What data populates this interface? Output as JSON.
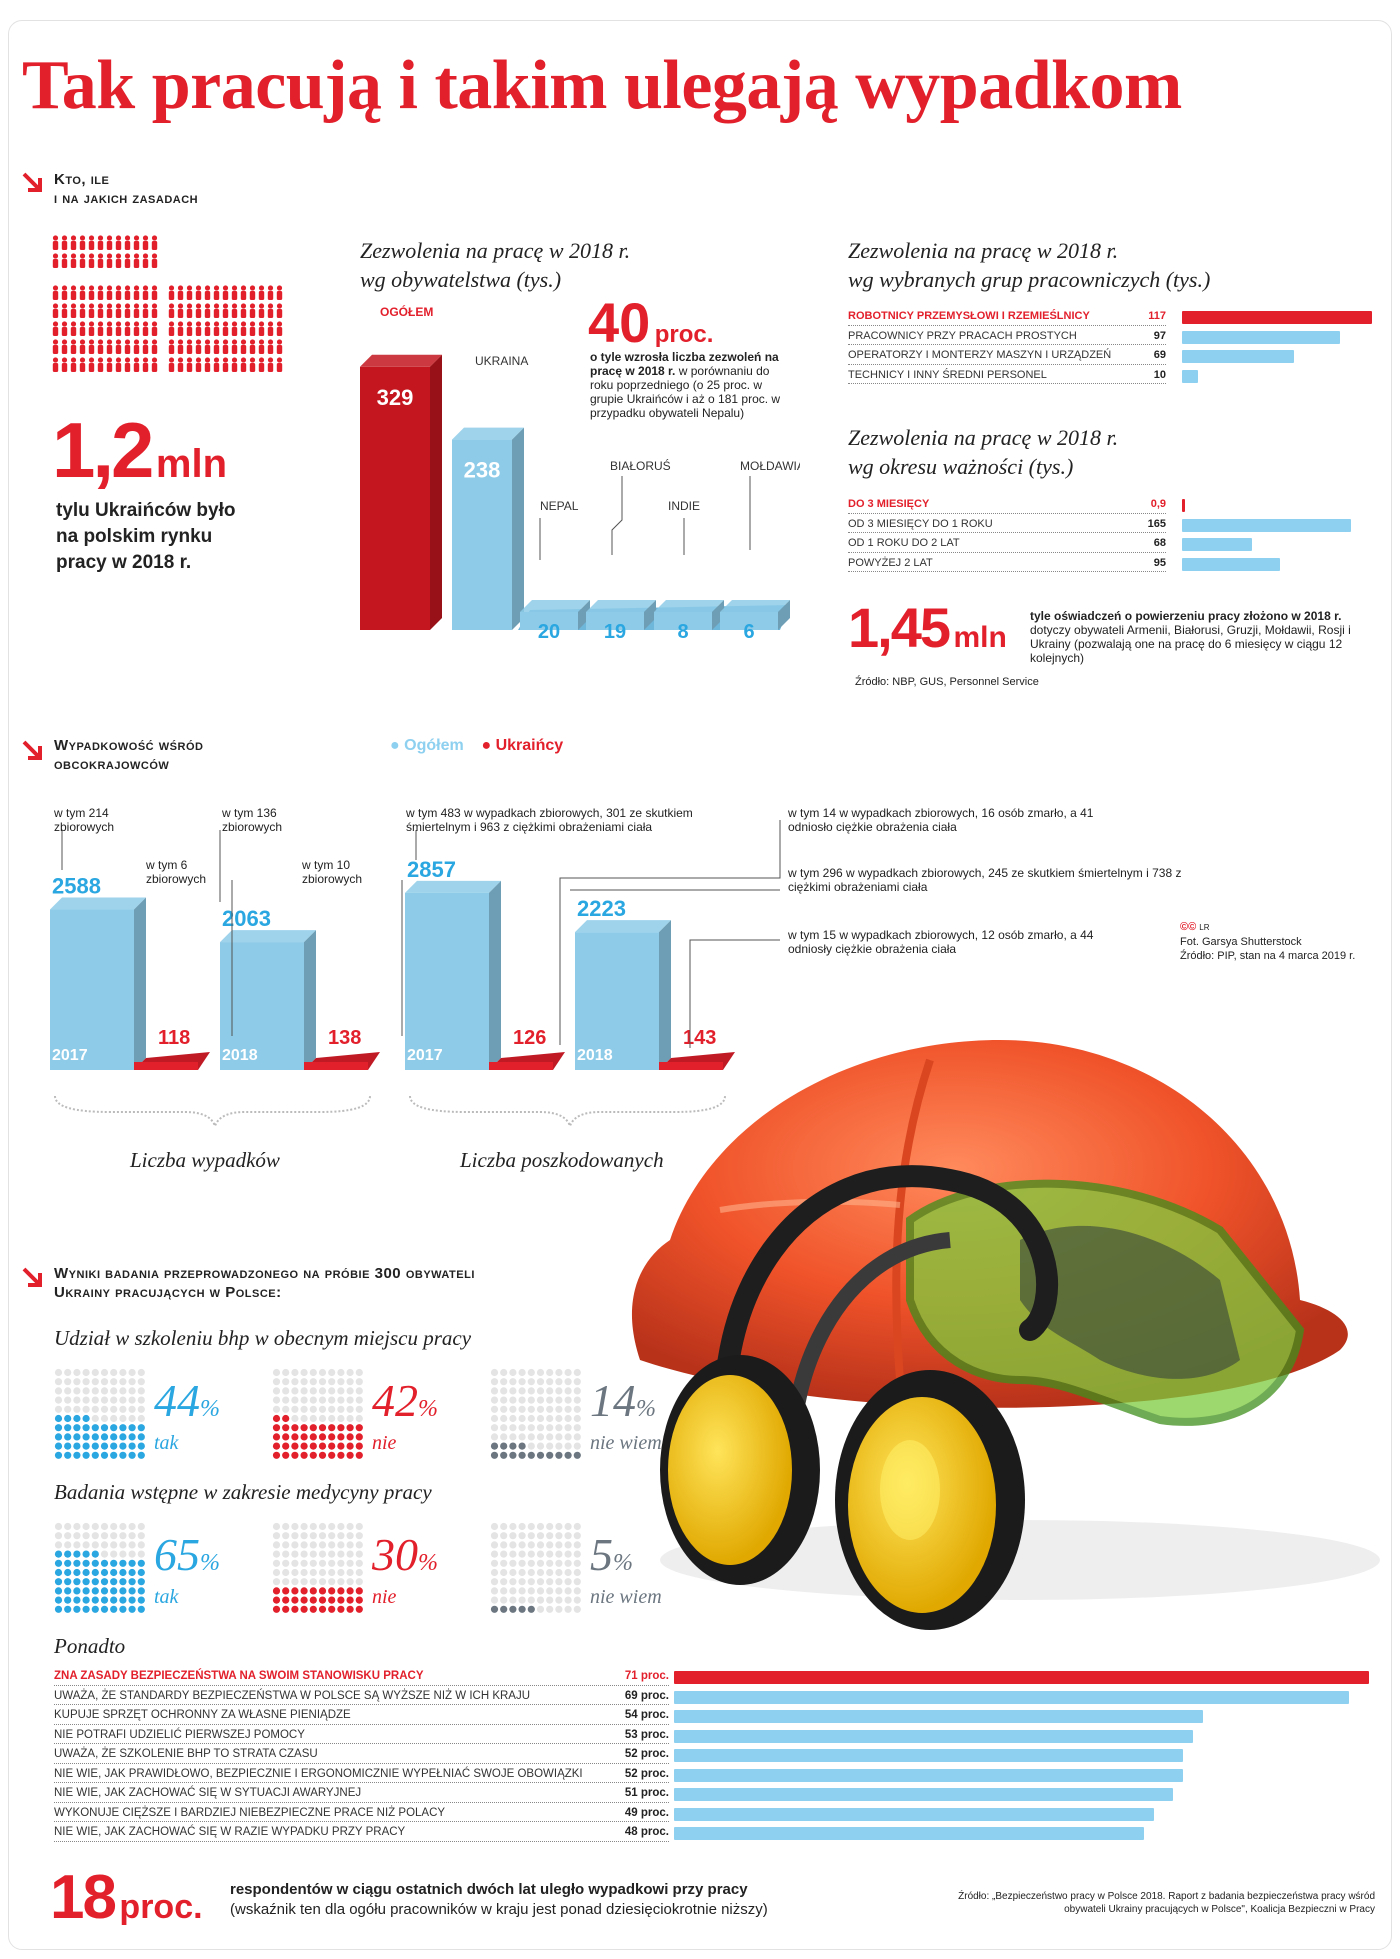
{
  "title": "Tak pracują i takim ulegają wypadkom",
  "section1": {
    "heading_line1": "Kto, ile",
    "heading_line2": "i na jakich zasadach",
    "big_number": "1,2",
    "big_unit": "mln",
    "big_caption": "tylu Ukraińców było na polskim rynku pracy w 2018 r."
  },
  "citizenship_chart": {
    "title_line1": "Zezwolenia na pracę w 2018 r.",
    "title_line2": "wg obywatelstwa (tys.)",
    "growth_number": "40",
    "growth_unit": "proc.",
    "growth_bold": "o tyle wzrosła liczba zezwoleń na pracę w 2018 r.",
    "growth_rest": " w porównaniu do roku poprzedniego (o 25 proc. w grupie Ukraińców i aż o 181 proc. w przypadku obywateli Nepalu)"
  },
  "groups_chart": {
    "title_line1": "Zezwolenia na pracę w 2018 r.",
    "title_line2": "wg wybranych grup pracowniczych (tys.)"
  },
  "validity_chart": {
    "title_line1": "Zezwolenia na pracę w 2018 r.",
    "title_line2": "wg okresu ważności (tys.)"
  },
  "declarations": {
    "number": "1,45",
    "unit": "mln",
    "bold": "tyle oświadczeń o powierzeniu pracy złożono w 2018 r.",
    "rest": "dotyczy obywateli Armenii, Białorusi, Gruzji, Mołdawii, Rosji i Ukrainy (pozwalają one na pracę do 6 miesięcy w ciągu 12 kolejnych)",
    "source": "Źródło: NBP, GUS, Personnel Service"
  },
  "section2": {
    "heading_line1": "Wypadkowość wśród",
    "heading_line2": "obcokrajowców",
    "legend_all": "Ogółem",
    "legend_ua": "Ukraińcy",
    "group1_label": "Liczba wypadków",
    "group2_label": "Liczba poszkodowanych",
    "ann": [
      "w tym 214 zbiorowych",
      "w tym 6 zbiorowych",
      "w tym 136 zbiorowych",
      "w tym 10 zbiorowych",
      "w tym 483 w wypadkach zbiorowych, 301 ze skutkiem śmiertelnym i 963 z ciężkimi obrażeniami ciała",
      "w tym 14 w wypadkach zbiorowych, 16 osób zmarło, a 41 odniosło ciężkie obrażenia ciała",
      "w tym 296 w wypadkach zbiorowych, 245 ze skutkiem śmiertelnym i 738 z ciężkimi obrażeniami ciała",
      "w tym 15 w wypadkach zbiorowych, 12 osób zmarło, a 44 odniosły ciężkie obrażenia ciała"
    ],
    "credit_lr": "LR",
    "credit_photo": "Fot. Garsya Shutterstock",
    "credit_source": "Źródło: PIP, stan na 4 marca 2019 r."
  },
  "section3": {
    "heading_line1": "Wyniki badania przeprowadzonego na próbie 300 obywateli",
    "heading_line2": "Ukrainy pracujących w Polsce:",
    "q1": "Udział w szkoleniu bhp w obecnym miejscu pracy",
    "q2": "Badania wstępne w zakresie medycyny pracy",
    "ponadto": "Ponadto",
    "footer_number": "18",
    "footer_unit": "proc.",
    "footer_bold": "respondentów w ciągu ostatnich dwóch lat uległo wypadkowi przy pracy",
    "footer_rest": "(wskaźnik ten dla ogółu pracowników w kraju jest ponad dziesięciokrotnie niższy)",
    "footer_source": "Źródło: „Bezpieczeństwo pracy w Polsce 2018. Raport z badania bezpieczeństwa pracy wśród obywateli Ukrainy pracujących w Polsce\", Koalicja Bezpieczni w Pracy"
  },
  "colors": {
    "red": "#e2202c",
    "blue": "#8dd0ef",
    "blue_text": "#2aa6e0",
    "gray": "#9aa3ab"
  },
  "chart_data": [
    {
      "type": "bar",
      "title": "Zezwolenia na pracę w 2018 r. wg obywatelstwa (tys.)",
      "categories": [
        "OGÓŁEM",
        "UKRAINA",
        "NEPAL",
        "BIAŁORUŚ",
        "INDIE",
        "MOŁDAWIA"
      ],
      "values": [
        329,
        238,
        20,
        19,
        8,
        6
      ]
    },
    {
      "type": "bar",
      "title": "Zezwolenia na pracę w 2018 r. wg wybranych grup pracowniczych (tys.)",
      "categories": [
        "ROBOTNICY PRZEMYSŁOWI I RZEMIEŚLNICY",
        "PRACOWNICY PRZY PRACACH PROSTYCH",
        "OPERATORZY I MONTERZY MASZYN I URZĄDZEŃ",
        "TECHNICY I INNY ŚREDNI PERSONEL"
      ],
      "values": [
        117,
        97,
        69,
        10
      ],
      "value_labels": [
        "117",
        "97",
        "69",
        "10"
      ]
    },
    {
      "type": "bar",
      "title": "Zezwolenia na pracę w 2018 r. wg okresu ważności (tys.)",
      "categories": [
        "DO 3 MIESIĘCY",
        "OD 3 MIESIĘCY DO 1 ROKU",
        "OD 1 ROKU DO 2 LAT",
        "POWYŻEJ 2 LAT"
      ],
      "values": [
        0.9,
        165,
        68,
        95
      ],
      "value_labels": [
        "0,9",
        "165",
        "68",
        "95"
      ]
    },
    {
      "type": "bar",
      "title": "Liczba wypadków",
      "categories": [
        "2017",
        "2018"
      ],
      "series": [
        {
          "name": "Ogółem",
          "values": [
            2588,
            2063
          ]
        },
        {
          "name": "Ukraińcy",
          "values": [
            118,
            138
          ]
        }
      ]
    },
    {
      "type": "bar",
      "title": "Liczba poszkodowanych",
      "categories": [
        "2017",
        "2018"
      ],
      "series": [
        {
          "name": "Ogółem",
          "values": [
            2857,
            2223
          ]
        },
        {
          "name": "Ukraińcy",
          "values": [
            126,
            143
          ]
        }
      ]
    },
    {
      "type": "waffle",
      "title": "Udział w szkoleniu bhp w obecnym miejscu pracy",
      "categories": [
        "tak",
        "nie",
        "nie wiem"
      ],
      "values": [
        44,
        42,
        14
      ]
    },
    {
      "type": "waffle",
      "title": "Badania wstępne w zakresie medycyny pracy",
      "categories": [
        "tak",
        "nie",
        "nie wiem"
      ],
      "values": [
        65,
        30,
        5
      ]
    },
    {
      "type": "bar",
      "title": "Ponadto",
      "categories": [
        "ZNA ZASADY BEZPIECZEŃSTWA NA SWOIM STANOWISKU PRACY",
        "UWAŻA, ŻE STANDARDY BEZPIECZEŃSTWA W POLSCE SĄ WYŻSZE NIŻ W ICH KRAJU",
        "KUPUJE SPRZĘT OCHRONNY ZA WŁASNE PIENIĄDZE",
        "NIE POTRAFI UDZIELIĆ PIERWSZEJ POMOCY",
        "UWAŻA, ŻE SZKOLENIE BHP TO STRATA CZASU",
        "NIE WIE, JAK PRAWIDŁOWO, BEZPIECZNIE I ERGONOMICZNIE WYPEŁNIAĆ SWOJE OBOWIĄZKI",
        "NIE WIE, JAK ZACHOWAĆ SIĘ W SYTUACJI AWARYJNEJ",
        "WYKONUJE CIĘŻSZE I BARDZIEJ NIEBEZPIECZNE PRACE NIŻ POLACY",
        "NIE WIE, JAK ZACHOWAĆ SIĘ W RAZIE WYPADKU PRZY PRACY"
      ],
      "values": [
        71,
        69,
        54,
        53,
        52,
        52,
        51,
        49,
        48
      ],
      "value_suffix": " proc."
    }
  ]
}
